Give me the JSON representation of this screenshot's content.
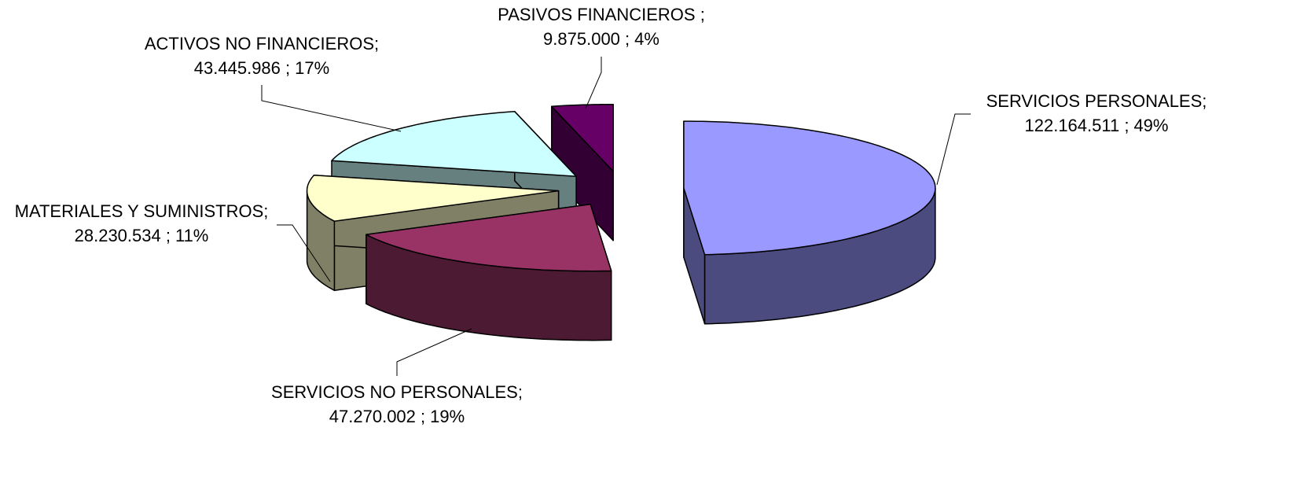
{
  "chart_data": {
    "type": "pie",
    "categories": [
      "SERVICIOS PERSONALES;",
      "SERVICIOS NO PERSONALES;",
      "MATERIALES Y SUMINISTROS;",
      "ACTIVOS NO FINANCIEROS;",
      "PASIVOS FINANCIEROS ;"
    ],
    "values": [
      122164511,
      47270002,
      28230534,
      43445986,
      9875000
    ],
    "value_labels": [
      "122.164.511 ;",
      "47.270.002 ;",
      "28.230.534 ;",
      "43.445.986 ;",
      "9.875.000 ;"
    ],
    "percentages": [
      49,
      19,
      11,
      17,
      4
    ],
    "percentage_labels": [
      "49%",
      "19%",
      "11%",
      "17%",
      "4%"
    ],
    "colors": [
      "#9999ff",
      "#993366",
      "#ffffcc",
      "#ccffff",
      "#660066"
    ],
    "side_colors": [
      "#4b4b80",
      "#4d1a33",
      "#808066",
      "#668080",
      "#330033"
    ]
  }
}
